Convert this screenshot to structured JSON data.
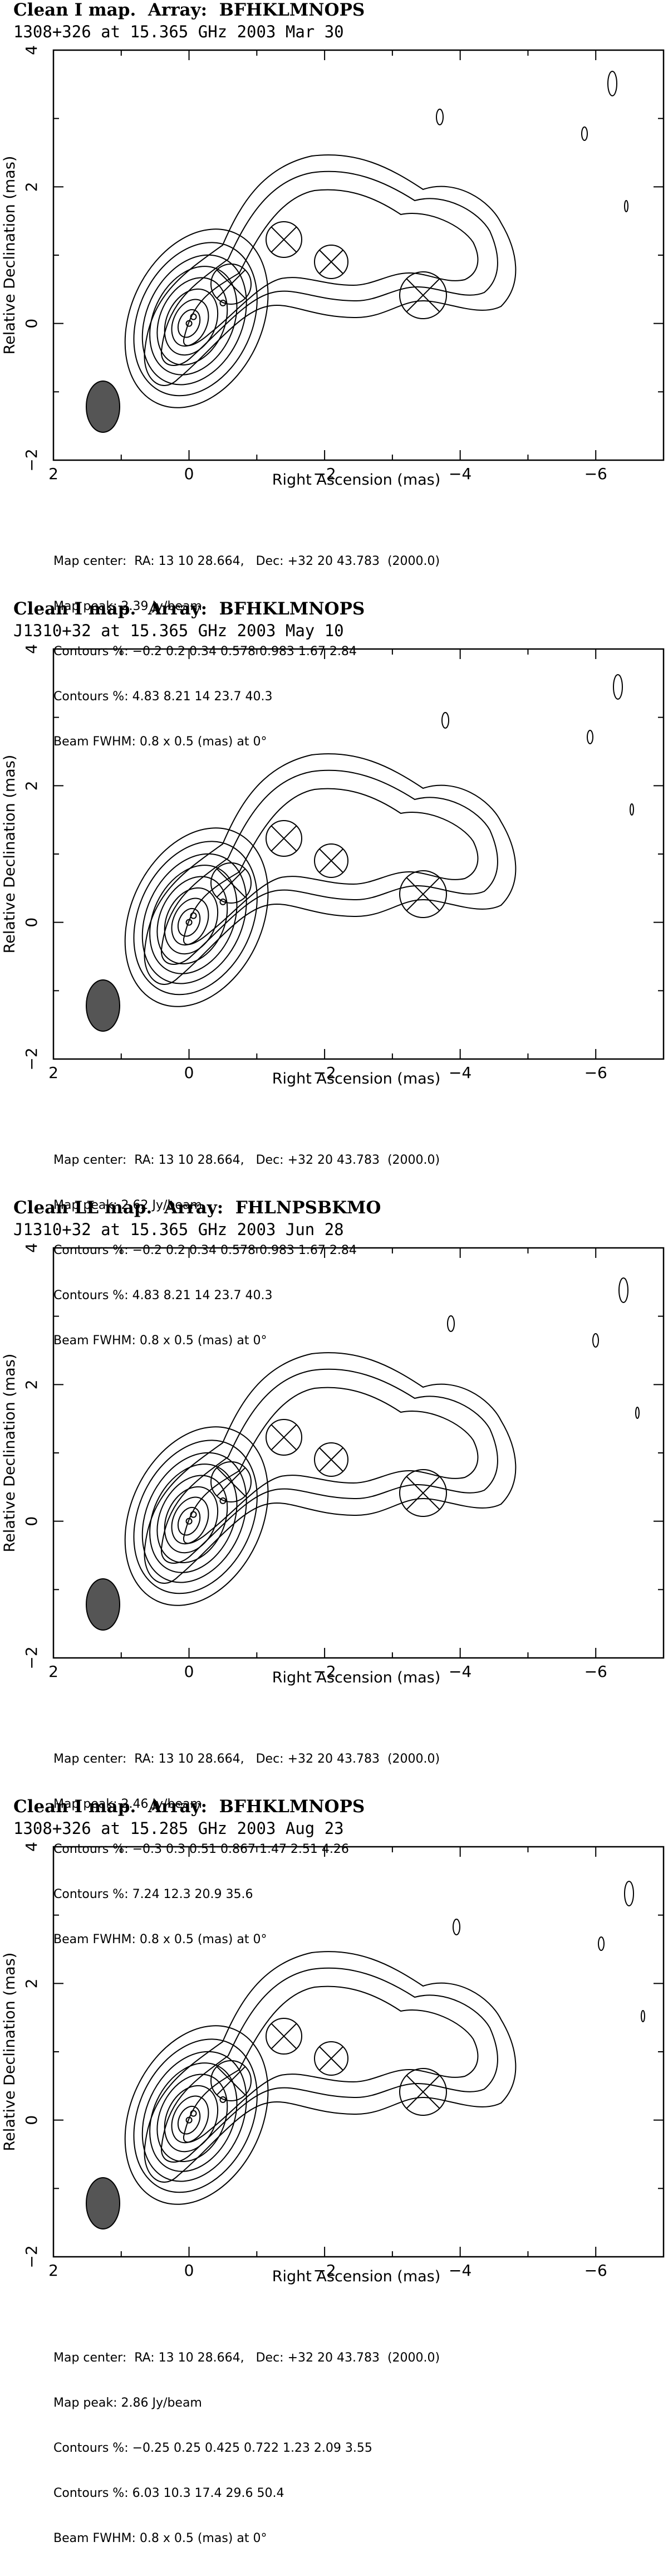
{
  "axes": {
    "xlabel": "Right Ascension   (mas)",
    "ylabel": "Relative Declination   (mas)",
    "xticks": [
      "2",
      "0",
      "−2",
      "−4",
      "−6"
    ],
    "yticks": [
      "4",
      "2",
      "0",
      "−2"
    ]
  },
  "panels": [
    {
      "title_line1": "Clean I map.  Array:  BFHKLMNOPS",
      "title_line2": "1308+326 at 15.365 GHz 2003 Mar 30",
      "map_center": "Map center:  RA: 13 10 28.664,   Dec: +32 20 43.783  (2000.0)",
      "map_peak": "Map peak: 2.39 Jy/beam",
      "contours": "Contours %: −0.2 0.2 0.34 0.578 0.983 1.67 2.84",
      "contours_pct": "Contours %: 4.83 8.21 14 23.7 40.3",
      "beam": "Beam FWHM: 0.8 x 0.5 (mas) at 0°"
    },
    {
      "title_line1": "Clean I map.  Array:  BFHKLMNOPS",
      "title_line2": "J1310+32 at 15.365 GHz 2003 May 10",
      "map_center": "Map center:  RA: 13 10 28.664,   Dec: +32 20 43.783  (2000.0)",
      "map_peak": "Map peak: 2.62 Jy/beam",
      "contours": "Contours %: −0.2 0.2 0.34 0.578 0.983 1.67 2.84",
      "contours_pct": "Contours %: 4.83 8.21 14 23.7 40.3",
      "beam": "Beam FWHM: 0.8 x 0.5 (mas) at 0°"
    },
    {
      "title_line1": "Clean LL map.  Array:  FHLNPSBKMO",
      "title_line2": "J1310+32 at 15.365 GHz 2003 Jun 28",
      "map_center": "Map center:  RA: 13 10 28.664,   Dec: +32 20 43.783  (2000.0)",
      "map_peak": "Map peak: 2.46 Jy/beam",
      "contours": "Contours %: −0.3 0.3 0.51 0.867 1.47 2.51 4.26",
      "contours_pct": "Contours %: 7.24 12.3 20.9 35.6",
      "beam": "Beam FWHM: 0.8 x 0.5 (mas) at 0°"
    },
    {
      "title_line1": "Clean I map.  Array:  BFHKLMNOPS",
      "title_line2": "1308+326 at 15.285 GHz 2003 Aug 23",
      "map_center": "Map center:  RA: 13 10 28.664,   Dec: +32 20 43.783  (2000.0)",
      "map_peak": "Map peak: 2.86 Jy/beam",
      "contours": "Contours %: −0.25 0.25 0.425 0.722 1.23 2.09 3.55",
      "contours_pct": "Contours %: 6.03 10.3 17.4 29.6 50.4",
      "beam": "Beam FWHM: 0.8 x 0.5 (mas) at 0°"
    }
  ]
}
